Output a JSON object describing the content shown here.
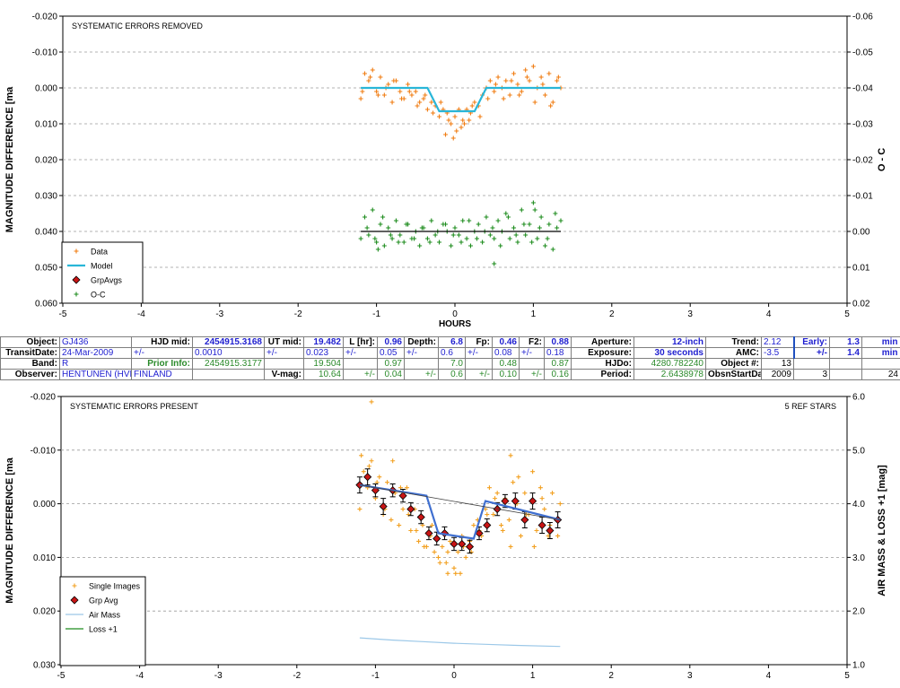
{
  "chart_data": [
    {
      "type": "scatter",
      "title": "SYSTEMATIC ERRORS REMOVED",
      "xlabel": "HOURS",
      "ylabel": "MAGNITUDE DIFFERENCE [ma",
      "y2label": "O - C",
      "xlim": [
        -5,
        5
      ],
      "ylim": [
        0.06,
        -0.02
      ],
      "y2lim": [
        0.02,
        -0.06
      ],
      "xticks": [
        "-5",
        "-4",
        "-3",
        "-2",
        "-1",
        "0",
        "1",
        "2",
        "3",
        "4",
        "5"
      ],
      "yticks": [
        "-0.020",
        "-0.010",
        "0.000",
        "0.010",
        "0.020",
        "0.030",
        "0.040",
        "0.050",
        "0.060"
      ],
      "y2ticks": [
        "-0.06",
        "-0.05",
        "-0.04",
        "-0.03",
        "-0.02",
        "-0.01",
        "0.00",
        "0.01",
        "0.02"
      ],
      "grid": true,
      "legend_position": "bottom-left",
      "legend": [
        "Data",
        "Model",
        "GrpAvgs",
        "O-C"
      ],
      "series": [
        {
          "name": "Data",
          "marker": "plus",
          "color": "#f07c12",
          "x": [
            -1.2,
            -1.15,
            -1.1,
            -1.05,
            -1.0,
            -0.95,
            -0.9,
            -0.85,
            -0.8,
            -0.75,
            -0.7,
            -0.65,
            -0.6,
            -0.55,
            -0.5,
            -0.45,
            -0.4,
            -0.35,
            -0.3,
            -0.25,
            -0.2,
            -0.15,
            -0.1,
            -0.05,
            0.0,
            0.05,
            0.1,
            0.15,
            0.2,
            0.25,
            0.3,
            0.35,
            0.4,
            0.45,
            0.5,
            0.55,
            0.6,
            0.65,
            0.7,
            0.75,
            0.8,
            0.85,
            0.9,
            0.95,
            1.0,
            1.05,
            1.1,
            1.15,
            1.2,
            1.25,
            1.3,
            1.35,
            -1.18,
            -1.08,
            -0.98,
            -0.88,
            -0.78,
            -0.68,
            -0.58,
            -0.48,
            -0.38,
            -0.28,
            -0.18,
            -0.08,
            0.02,
            0.12,
            0.22,
            0.32,
            0.42,
            0.52,
            0.62,
            0.72,
            0.82,
            0.92,
            1.02,
            1.12,
            1.22,
            1.32,
            -0.02,
            0.08,
            -0.12,
            0.18
          ],
          "y": [
            0.003,
            -0.004,
            -0.002,
            -0.005,
            0.001,
            -0.003,
            0.002,
            -0.001,
            0.004,
            -0.002,
            0.001,
            0.003,
            -0.001,
            0.002,
            0.001,
            0.004,
            0.003,
            0.006,
            0.004,
            0.005,
            0.008,
            0.006,
            0.007,
            0.01,
            0.008,
            0.006,
            0.009,
            0.006,
            0.007,
            0.004,
            0.005,
            0.002,
            0.0,
            -0.002,
            0.001,
            -0.003,
            0.0,
            -0.002,
            0.002,
            -0.004,
            -0.001,
            0.001,
            -0.005,
            -0.002,
            -0.006,
            0.0,
            -0.003,
            0.002,
            -0.004,
            0.004,
            -0.002,
            0.0,
            0.001,
            -0.003,
            0.002,
            0.0,
            -0.002,
            0.003,
            0.001,
            0.005,
            0.002,
            0.007,
            0.004,
            0.009,
            0.012,
            0.01,
            0.005,
            0.008,
            0.003,
            -0.001,
            0.003,
            -0.002,
            0.002,
            -0.003,
            0.004,
            -0.001,
            0.005,
            -0.003,
            0.014,
            0.011,
            0.013,
            0.009
          ]
        },
        {
          "name": "Model",
          "line": true,
          "color": "#29b6d8",
          "x": [
            -1.2,
            -0.35,
            -0.2,
            0.25,
            0.4,
            1.35
          ],
          "y": [
            0.0,
            0.0,
            0.0065,
            0.0065,
            0.0,
            0.0
          ]
        },
        {
          "name": "O-C",
          "marker": "plus",
          "color": "#1e8c1e",
          "axis": "y2",
          "x": [
            -1.2,
            -1.15,
            -1.1,
            -1.05,
            -1.0,
            -0.95,
            -0.9,
            -0.85,
            -0.8,
            -0.75,
            -0.7,
            -0.65,
            -0.6,
            -0.55,
            -0.5,
            -0.45,
            -0.4,
            -0.35,
            -0.3,
            -0.25,
            -0.2,
            -0.15,
            -0.1,
            -0.05,
            0.0,
            0.05,
            0.1,
            0.15,
            0.2,
            0.25,
            0.3,
            0.35,
            0.4,
            0.45,
            0.5,
            0.55,
            0.6,
            0.65,
            0.7,
            0.75,
            0.8,
            0.85,
            0.9,
            0.95,
            1.0,
            1.05,
            1.1,
            1.15,
            1.2,
            1.25,
            1.3,
            1.35,
            -1.12,
            -1.02,
            -0.92,
            -0.82,
            -0.72,
            -0.62,
            -0.52,
            -0.42,
            -0.32,
            -0.22,
            -0.12,
            -0.02,
            0.08,
            0.18,
            0.28,
            0.38,
            0.48,
            0.58,
            0.68,
            0.78,
            0.88,
            0.98,
            1.08,
            1.18,
            1.28,
            -0.98,
            1.02,
            0.5
          ],
          "y": [
            0.002,
            -0.004,
            0.001,
            -0.006,
            0.003,
            -0.002,
            0.004,
            -0.001,
            0.002,
            -0.003,
            0.001,
            0.003,
            -0.002,
            0.002,
            0.0,
            0.004,
            -0.001,
            0.002,
            -0.003,
            0.001,
            0.003,
            -0.002,
            0.0,
            0.004,
            -0.001,
            0.001,
            -0.003,
            0.002,
            0.004,
            0.0,
            -0.002,
            0.003,
            -0.004,
            0.001,
            0.002,
            -0.003,
            0.0,
            -0.005,
            0.002,
            -0.001,
            0.003,
            -0.006,
            0.001,
            -0.002,
            -0.008,
            0.002,
            -0.004,
            0.004,
            -0.002,
            0.005,
            -0.001,
            -0.003,
            -0.001,
            0.002,
            -0.004,
            0.001,
            0.003,
            -0.002,
            0.002,
            -0.001,
            0.003,
            0.0,
            -0.002,
            0.001,
            0.003,
            -0.003,
            0.002,
            0.0,
            -0.001,
            0.004,
            -0.004,
            0.001,
            -0.002,
            0.003,
            -0.001,
            0.002,
            -0.005,
            0.005,
            -0.006,
            0.009
          ]
        },
        {
          "name": "Zero",
          "line": true,
          "color": "#000000",
          "axis": "y2",
          "x": [
            -1.2,
            1.35
          ],
          "y": [
            0.0,
            0.0
          ]
        }
      ]
    },
    {
      "type": "scatter",
      "title": "SYSTEMATIC ERRORS PRESENT",
      "annotation": "5 REF STARS",
      "xlabel": "",
      "ylabel": "MAGNITUDE DIFFERENCE [ma",
      "y2label": "AIR MASS & LOSS +1 [mag]",
      "xlim": [
        -5,
        5
      ],
      "ylim": [
        0.03,
        -0.02
      ],
      "y2lim": [
        1.0,
        6.0
      ],
      "xticks": [
        "-5",
        "-4",
        "-3",
        "-2",
        "-1",
        "0",
        "1",
        "2",
        "3",
        "4",
        "5"
      ],
      "yticks": [
        "-0.020",
        "-0.010",
        "0.000",
        "0.010",
        "0.020",
        "0.030"
      ],
      "y2ticks": [
        "6.0",
        "5.0",
        "4.0",
        "3.0",
        "2.0",
        "1.0"
      ],
      "grid": true,
      "legend_position": "bottom-left",
      "legend": [
        "Single Images",
        "Grp Avg",
        "Air Mass",
        "Loss +1"
      ],
      "series": [
        {
          "name": "Single Images",
          "marker": "plus",
          "color": "#f2a020",
          "x": [
            -1.2,
            -1.15,
            -1.1,
            -1.05,
            -1.0,
            -0.95,
            -0.9,
            -0.85,
            -0.8,
            -0.75,
            -0.7,
            -0.65,
            -0.6,
            -0.55,
            -0.5,
            -0.45,
            -0.4,
            -0.35,
            -0.3,
            -0.25,
            -0.2,
            -0.15,
            -0.1,
            -0.05,
            0.0,
            0.05,
            0.1,
            0.15,
            0.2,
            0.25,
            0.3,
            0.35,
            0.4,
            0.45,
            0.5,
            0.55,
            0.6,
            0.65,
            0.7,
            0.75,
            0.8,
            0.85,
            0.9,
            0.95,
            1.0,
            1.05,
            1.1,
            1.15,
            1.2,
            1.25,
            1.3,
            1.35,
            -1.18,
            -1.08,
            -0.98,
            -0.88,
            -0.78,
            -0.68,
            -0.58,
            -0.48,
            -0.38,
            -0.28,
            -0.18,
            -0.08,
            0.02,
            0.12,
            0.22,
            0.32,
            0.42,
            0.52,
            0.62,
            0.72,
            0.82,
            0.92,
            1.02,
            1.12,
            1.22,
            1.32,
            0.08,
            -0.08,
            0.72,
            -1.05
          ],
          "y": [
            0.001,
            -0.006,
            -0.003,
            -0.008,
            -0.001,
            -0.005,
            0.002,
            -0.004,
            0.003,
            -0.002,
            0.004,
            0.001,
            -0.003,
            0.005,
            0.001,
            0.007,
            0.004,
            0.008,
            0.006,
            0.009,
            0.01,
            0.008,
            0.011,
            0.007,
            0.012,
            0.009,
            0.006,
            0.01,
            0.007,
            0.004,
            0.003,
            0.006,
            0.001,
            -0.003,
            0.002,
            -0.002,
            0.004,
            -0.001,
            0.003,
            -0.004,
            0.0,
            0.006,
            -0.002,
            0.002,
            -0.006,
            0.005,
            -0.003,
            0.001,
            0.006,
            -0.002,
            0.003,
            0.0,
            -0.009,
            -0.007,
            -0.004,
            0.001,
            -0.008,
            -0.003,
            0.002,
            0.005,
            0.008,
            0.004,
            0.011,
            0.009,
            0.013,
            0.008,
            0.009,
            0.005,
            0.002,
            -0.001,
            0.005,
            0.008,
            -0.005,
            0.002,
            0.008,
            -0.001,
            0.004,
            0.006,
            0.013,
            0.013,
            -0.009,
            -0.019
          ]
        },
        {
          "name": "Grp Avg",
          "marker": "diamond",
          "color": "#c81414",
          "errorbars": true,
          "x": [
            -1.2,
            -1.1,
            -1.0,
            -0.9,
            -0.78,
            -0.65,
            -0.55,
            -0.42,
            -0.32,
            -0.22,
            -0.12,
            0.0,
            0.1,
            0.2,
            0.32,
            0.42,
            0.55,
            0.65,
            0.78,
            0.9,
            1.0,
            1.12,
            1.22,
            1.32
          ],
          "y": [
            -0.0035,
            -0.005,
            -0.0025,
            0.0005,
            -0.0025,
            -0.0015,
            0.001,
            0.0025,
            0.0055,
            0.0065,
            0.0055,
            0.0075,
            0.0075,
            0.008,
            0.0055,
            0.004,
            0.001,
            -0.0005,
            -0.0005,
            0.003,
            -0.0005,
            0.004,
            0.005,
            0.003
          ],
          "err": [
            0.0015,
            0.0015,
            0.0012,
            0.0015,
            0.0012,
            0.0012,
            0.0012,
            0.0012,
            0.0012,
            0.0012,
            0.0012,
            0.0012,
            0.0012,
            0.0012,
            0.0012,
            0.0012,
            0.0012,
            0.0012,
            0.0015,
            0.0015,
            0.0015,
            0.0015,
            0.0015,
            0.0015
          ]
        },
        {
          "name": "Model",
          "line": true,
          "color": "#3f6fd0",
          "x": [
            -1.2,
            -0.35,
            -0.2,
            0.25,
            0.4,
            1.35
          ],
          "y": [
            -0.0035,
            -0.0015,
            0.0055,
            0.0065,
            -0.0005,
            0.003
          ]
        },
        {
          "name": "Trend",
          "line": true,
          "color": "#404040",
          "x": [
            -1.2,
            1.35
          ],
          "y": [
            -0.0035,
            0.003
          ]
        },
        {
          "name": "Air Mass",
          "line": true,
          "color": "#9cc8e8",
          "axis": "y2",
          "x": [
            -1.2,
            -0.8,
            -0.4,
            0.0,
            0.4,
            0.8,
            1.35
          ],
          "y": [
            1.5,
            1.46,
            1.43,
            1.4,
            1.38,
            1.36,
            1.34
          ]
        }
      ]
    }
  ],
  "info_table": [
    [
      {
        "t": "Object:",
        "c": "lbl"
      },
      {
        "t": "GJ436",
        "c": "blue"
      },
      {
        "t": "HJD mid:",
        "c": "lbl"
      },
      {
        "t": "2454915.3168",
        "c": "blueb"
      },
      {
        "t": "UT mid:",
        "c": "lbl"
      },
      {
        "t": "19.482",
        "c": "blueb"
      },
      {
        "t": "L [hr]:",
        "c": "lbl"
      },
      {
        "t": "0.96",
        "c": "blueb"
      },
      {
        "t": "Depth:",
        "c": "lbl"
      },
      {
        "t": "6.8",
        "c": "blueb"
      },
      {
        "t": "Fp:",
        "c": "lbl"
      },
      {
        "t": "0.46",
        "c": "blueb"
      },
      {
        "t": "F2:",
        "c": "lbl"
      },
      {
        "t": "0.88",
        "c": "blueb"
      },
      {
        "t": "Aperture:",
        "c": "lbl"
      },
      {
        "t": "12-inch",
        "c": "blueb"
      },
      {
        "t": "Trend:",
        "c": "lbl"
      },
      {
        "t": "2.12",
        "c": "blue"
      },
      {
        "t": "Early:",
        "c": "blueb boxl"
      },
      {
        "t": "1.3",
        "c": "blueb"
      },
      {
        "t": "min",
        "c": "blueb boxr"
      }
    ],
    [
      {
        "t": "TransitDate:",
        "c": "lbl"
      },
      {
        "t": "24-Mar-2009",
        "c": "blue"
      },
      {
        "t": "+/-",
        "c": "blue"
      },
      {
        "t": "0.0010",
        "c": "blue"
      },
      {
        "t": "+/-",
        "c": "blue"
      },
      {
        "t": "0.023",
        "c": "blue"
      },
      {
        "t": "+/-",
        "c": "blue"
      },
      {
        "t": "0.05",
        "c": "blue"
      },
      {
        "t": "+/-",
        "c": "blue"
      },
      {
        "t": "0.6",
        "c": "blue"
      },
      {
        "t": "+/-",
        "c": "blue"
      },
      {
        "t": "0.08",
        "c": "blue"
      },
      {
        "t": "+/-",
        "c": "blue"
      },
      {
        "t": "0.18",
        "c": "blue"
      },
      {
        "t": "Exposure:",
        "c": "lbl"
      },
      {
        "t": "30 seconds",
        "c": "blueb"
      },
      {
        "t": "AMC:",
        "c": "lbl"
      },
      {
        "t": "-3.5",
        "c": "blue"
      },
      {
        "t": "+/-",
        "c": "blueb boxl"
      },
      {
        "t": "1.4",
        "c": "blueb"
      },
      {
        "t": "min",
        "c": "blueb boxr"
      }
    ],
    [
      {
        "t": "Band:",
        "c": "lbl"
      },
      {
        "t": "R",
        "c": "blue"
      },
      {
        "t": "Prior Info:",
        "c": "greenb"
      },
      {
        "t": "2454915.3177",
        "c": "green"
      },
      {
        "t": "",
        "c": ""
      },
      {
        "t": "19.504",
        "c": "green"
      },
      {
        "t": "",
        "c": ""
      },
      {
        "t": "0.97",
        "c": "green"
      },
      {
        "t": "",
        "c": ""
      },
      {
        "t": "7.0",
        "c": "green"
      },
      {
        "t": "",
        "c": ""
      },
      {
        "t": "0.48",
        "c": "green"
      },
      {
        "t": "",
        "c": ""
      },
      {
        "t": "0.87",
        "c": "green"
      },
      {
        "t": "HJDo:",
        "c": "lbl"
      },
      {
        "t": "4280.782240",
        "c": "green"
      },
      {
        "t": "Object #:",
        "c": "lbl"
      },
      {
        "t": "13",
        "c": ""
      },
      {
        "t": "",
        "c": ""
      },
      {
        "t": "",
        "c": ""
      },
      {
        "t": "",
        "c": ""
      }
    ],
    [
      {
        "t": "Observer:",
        "c": "lbl"
      },
      {
        "t": "HENTUNEN (HVP)",
        "c": "blue"
      },
      {
        "t": "FINLAND",
        "c": "blue"
      },
      {
        "t": "",
        "c": ""
      },
      {
        "t": "V-mag:",
        "c": "lbl"
      },
      {
        "t": "10.64",
        "c": "green"
      },
      {
        "t": "+/-",
        "c": "green"
      },
      {
        "t": "0.04",
        "c": "green"
      },
      {
        "t": "+/-",
        "c": "green"
      },
      {
        "t": "0.6",
        "c": "green"
      },
      {
        "t": "+/-",
        "c": "green"
      },
      {
        "t": "0.10",
        "c": "green"
      },
      {
        "t": "+/-",
        "c": "green"
      },
      {
        "t": "0.16",
        "c": "green"
      },
      {
        "t": "Period:",
        "c": "lbl"
      },
      {
        "t": "2.6438978",
        "c": "green"
      },
      {
        "t": "ObsnStartDate:",
        "c": "lbl"
      },
      {
        "t": "2009",
        "c": ""
      },
      {
        "t": "3",
        "c": ""
      },
      {
        "t": "",
        "c": ""
      },
      {
        "t": "24",
        "c": ""
      }
    ]
  ]
}
